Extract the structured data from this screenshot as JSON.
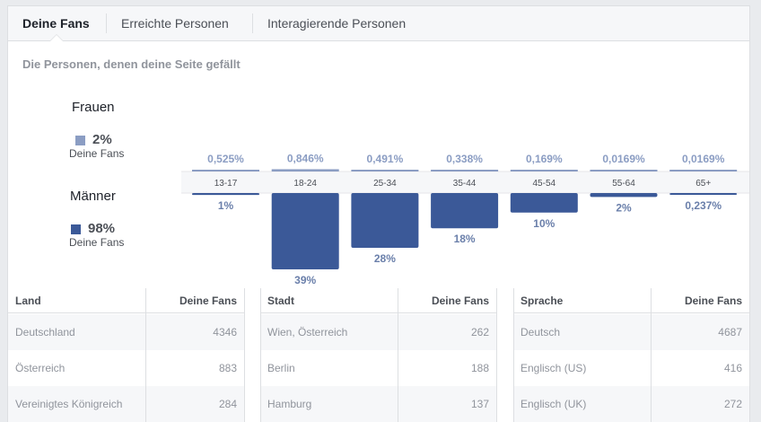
{
  "tabs": [
    {
      "label": "Deine Fans",
      "active": true
    },
    {
      "label": "Erreichte Personen",
      "active": false
    },
    {
      "label": "Interagierende Personen",
      "active": false
    }
  ],
  "subtitle": "Die Personen, denen deine Seite gefällt",
  "genders": {
    "women": {
      "title": "Frauen",
      "percent": "2%",
      "label": "Deine Fans",
      "color": "#8b9dc3"
    },
    "men": {
      "title": "Männer",
      "percent": "98%",
      "label": "Deine Fans",
      "color": "#3b5998"
    }
  },
  "chart_data": {
    "type": "bar",
    "categories": [
      "13-17",
      "18-24",
      "25-34",
      "35-44",
      "45-54",
      "55-64",
      "65+"
    ],
    "series": [
      {
        "name": "Frauen",
        "values": [
          0.525,
          0.846,
          0.491,
          0.338,
          0.169,
          0.0169,
          0.0169
        ],
        "labels": [
          "0,525%",
          "0,846%",
          "0,491%",
          "0,338%",
          "0,169%",
          "0,0169%",
          "0,0169%"
        ],
        "color": "#8b9dc3"
      },
      {
        "name": "Männer",
        "values": [
          1,
          39,
          28,
          18,
          10,
          2,
          0.237
        ],
        "labels": [
          "1%",
          "39%",
          "28%",
          "18%",
          "10%",
          "2%",
          "0,237%"
        ],
        "color": "#3b5998"
      }
    ]
  },
  "tables": {
    "country": {
      "col1": "Land",
      "col2": "Deine Fans",
      "rows": [
        {
          "name": "Deutschland",
          "value": "4346"
        },
        {
          "name": "Österreich",
          "value": "883"
        },
        {
          "name": "Vereinigtes Königreich",
          "value": "284"
        }
      ]
    },
    "city": {
      "col1": "Stadt",
      "col2": "Deine Fans",
      "rows": [
        {
          "name": "Wien, Österreich",
          "value": "262"
        },
        {
          "name": "Berlin",
          "value": "188"
        },
        {
          "name": "Hamburg",
          "value": "137"
        }
      ]
    },
    "language": {
      "col1": "Sprache",
      "col2": "Deine Fans",
      "rows": [
        {
          "name": "Deutsch",
          "value": "4687"
        },
        {
          "name": "Englisch (US)",
          "value": "416"
        },
        {
          "name": "Englisch (UK)",
          "value": "272"
        }
      ]
    }
  },
  "colors": {
    "women": "#8b9dc3",
    "men": "#3b5998",
    "row_shade": "#f6f7f9"
  }
}
